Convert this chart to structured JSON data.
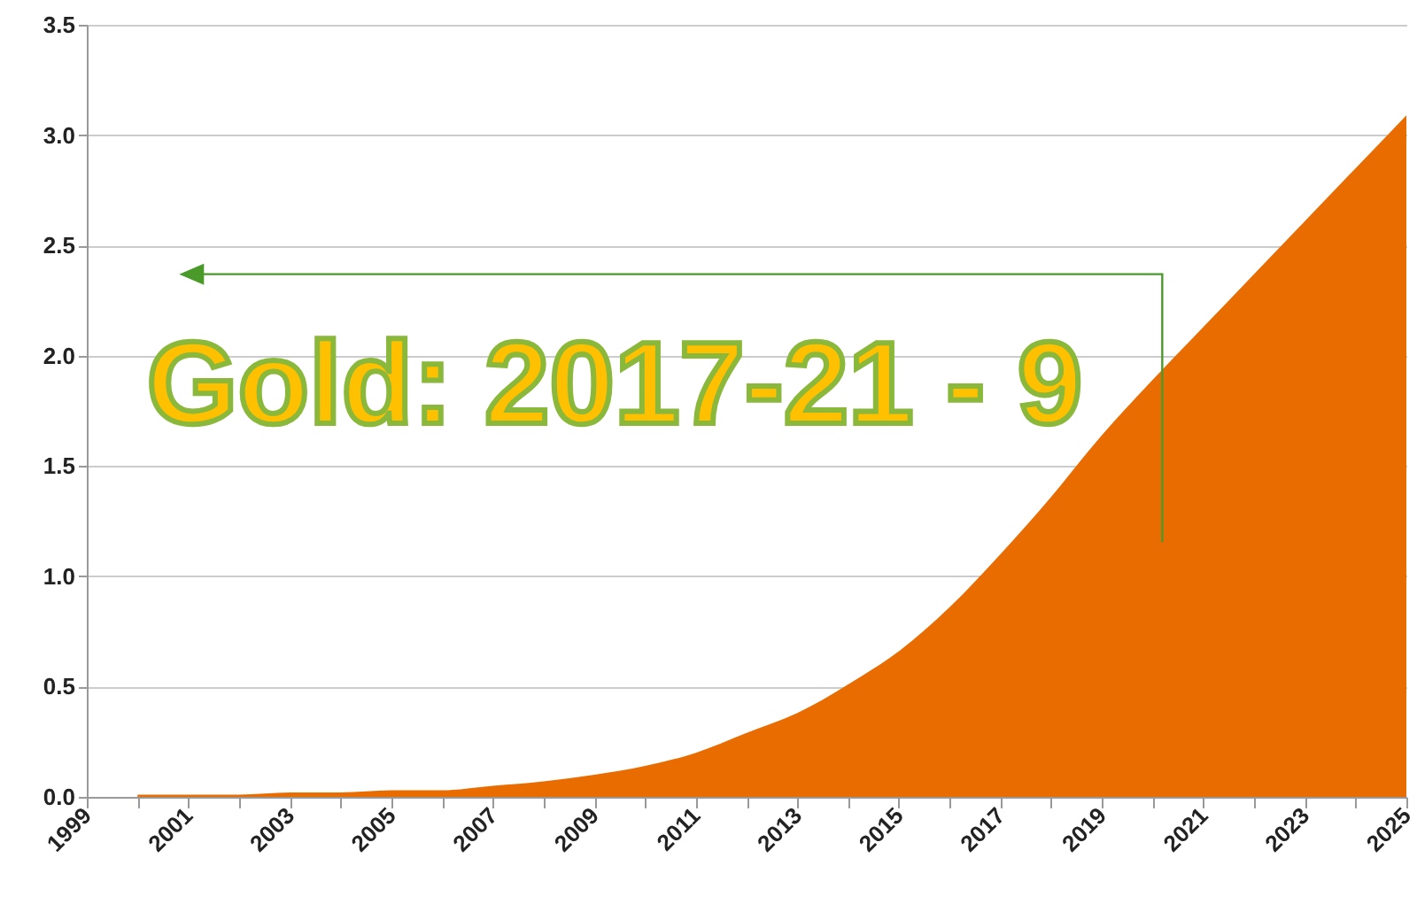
{
  "chart_data": {
    "type": "area",
    "x": [
      2000,
      2001,
      2002,
      2003,
      2004,
      2005,
      2006,
      2007,
      2008,
      2009,
      2010,
      2011,
      2012,
      2013,
      2014,
      2015,
      2016,
      2017,
      2018,
      2019,
      2020,
      2021,
      2022,
      2023,
      2024,
      2025
    ],
    "series": [
      {
        "color": "#e86c00",
        "values": [
          0.01,
          0.01,
          0.01,
          0.02,
          0.02,
          0.03,
          0.03,
          0.05,
          0.07,
          0.1,
          0.14,
          0.2,
          0.29,
          0.38,
          0.51,
          0.66,
          0.86,
          1.1,
          1.36,
          1.64,
          1.89,
          2.13,
          2.37,
          2.61,
          2.85,
          3.09
        ]
      }
    ],
    "xlim": [
      1999,
      2025
    ],
    "xticks": [
      1999,
      {
        "value": 2000,
        "label": null
      },
      2001,
      {
        "value": 2002,
        "label": null
      },
      2003,
      {
        "value": 2004,
        "label": null
      },
      2005,
      {
        "value": 2006,
        "label": null
      },
      2007,
      {
        "value": 2008,
        "label": null
      },
      2009,
      {
        "value": 2010,
        "label": null
      },
      2011,
      {
        "value": 2012,
        "label": null
      },
      2013,
      {
        "value": 2014,
        "label": null
      },
      2015,
      {
        "value": 2016,
        "label": null
      },
      2017,
      {
        "value": 2018,
        "label": null
      },
      2019,
      {
        "value": 2020,
        "label": null
      },
      2021,
      {
        "value": 2022,
        "label": null
      },
      2023,
      {
        "value": 2024,
        "label": null
      },
      2025
    ],
    "ylim": [
      0,
      3.5
    ],
    "yticks": [
      {
        "value": 0,
        "label": "0.0"
      },
      {
        "value": 0.5,
        "label": "0.5"
      },
      {
        "value": 1,
        "label": "1.0"
      },
      {
        "value": 1.5,
        "label": "1.5"
      },
      {
        "value": 2,
        "label": "2.0"
      },
      {
        "value": 2.5,
        "label": "2.5"
      },
      {
        "value": 3,
        "label": "3.0"
      },
      {
        "value": 3.5,
        "label": "3.5"
      }
    ],
    "grid": "y",
    "annotations": [
      "Gold: 2017-21 - 9"
    ]
  }
}
